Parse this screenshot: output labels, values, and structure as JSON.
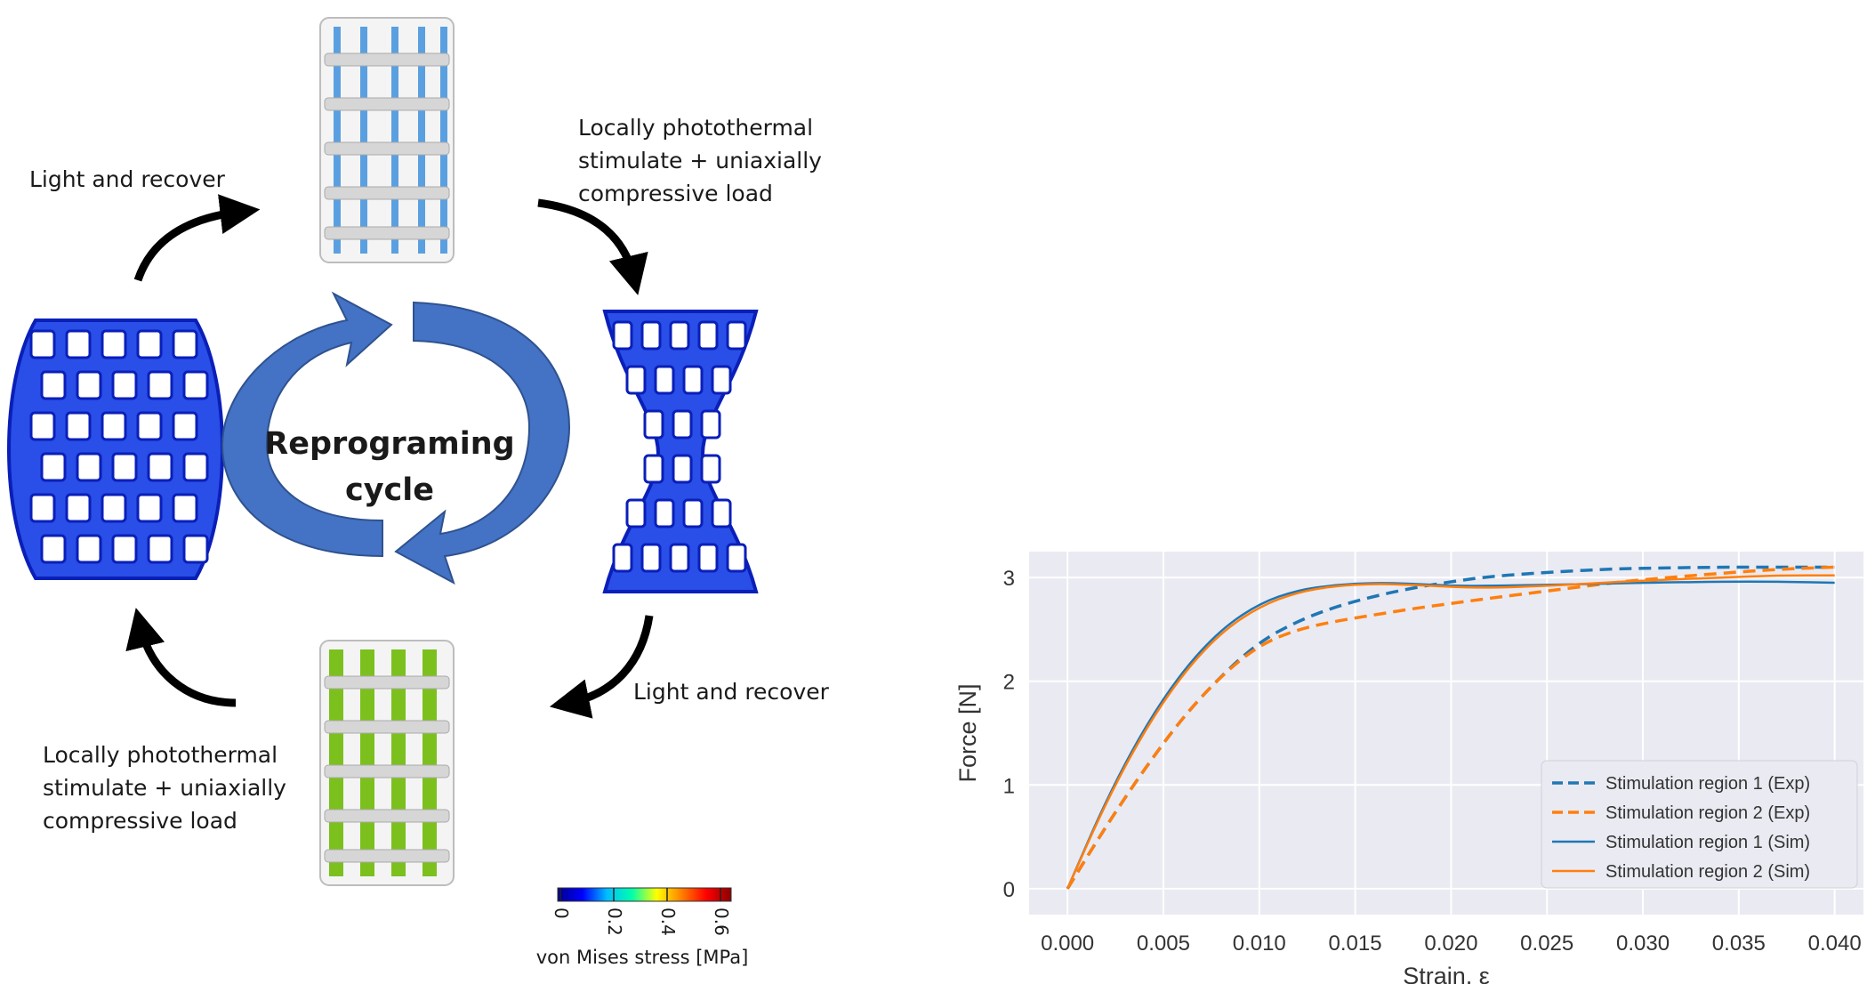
{
  "diagram": {
    "cycle_label_line1": "Reprograming",
    "cycle_label_line2": "cycle",
    "step_top_left": "Light and recover",
    "step_top_right": [
      "Locally photothermal",
      "stimulate + uniaxially",
      "compressive load"
    ],
    "step_bottom_right": "Light and recover",
    "step_bottom_left": [
      "Locally photothermal",
      "stimulate + uniaxially",
      "compressive load"
    ],
    "colorbar": {
      "title": "von Mises stress [MPa]",
      "ticks": [
        "0",
        "0.2",
        "0.4",
        "0.6"
      ],
      "colors": [
        "#00008b",
        "#0000ff",
        "#00bfff",
        "#00ffaa",
        "#ffff00",
        "#ff8000",
        "#ff0000",
        "#8b0000"
      ]
    },
    "colors": {
      "stress_blue": "#1f3fe0",
      "stimulated_green": "#7cc01e",
      "cycle_arrow": "#4472c4",
      "light_blue_stripe": "#5aa0e0"
    }
  },
  "chart_data": {
    "type": "line",
    "xlabel": "Strain, ε",
    "ylabel": "Force [N]",
    "xlim": [
      -0.002,
      0.0415
    ],
    "ylim": [
      -0.25,
      3.25
    ],
    "xticks": [
      0.0,
      0.005,
      0.01,
      0.015,
      0.02,
      0.025,
      0.03,
      0.035,
      0.04
    ],
    "xtick_labels": [
      "0.000",
      "0.005",
      "0.010",
      "0.015",
      "0.020",
      "0.025",
      "0.030",
      "0.035",
      "0.040"
    ],
    "yticks": [
      0,
      1,
      2,
      3
    ],
    "ytick_labels": [
      "0",
      "1",
      "2",
      "3"
    ],
    "grid": true,
    "legend_position": "lower-right",
    "series": [
      {
        "name": "Stimulation region 1 (Exp)",
        "color": "#1f77b4",
        "dash": "dashed",
        "x": [
          0.0,
          0.002,
          0.004,
          0.006,
          0.008,
          0.01,
          0.012,
          0.014,
          0.016,
          0.018,
          0.02,
          0.022,
          0.025,
          0.028,
          0.03,
          0.034,
          0.037,
          0.04
        ],
        "y": [
          0.0,
          0.6,
          1.15,
          1.65,
          2.05,
          2.38,
          2.58,
          2.72,
          2.82,
          2.9,
          2.96,
          3.01,
          3.05,
          3.08,
          3.09,
          3.1,
          3.1,
          3.1
        ]
      },
      {
        "name": "Stimulation region 2 (Exp)",
        "color": "#ff7f0e",
        "dash": "dashed",
        "x": [
          0.0,
          0.002,
          0.004,
          0.006,
          0.008,
          0.01,
          0.012,
          0.014,
          0.016,
          0.018,
          0.02,
          0.022,
          0.025,
          0.028,
          0.03,
          0.034,
          0.037,
          0.04
        ],
        "y": [
          0.0,
          0.6,
          1.15,
          1.65,
          2.05,
          2.35,
          2.5,
          2.58,
          2.64,
          2.7,
          2.75,
          2.8,
          2.87,
          2.94,
          2.98,
          3.04,
          3.08,
          3.1
        ]
      },
      {
        "name": "Stimulation region 1 (Sim)",
        "color": "#1f77b4",
        "dash": "solid",
        "x": [
          0.0,
          0.002,
          0.004,
          0.006,
          0.008,
          0.01,
          0.012,
          0.014,
          0.016,
          0.018,
          0.02,
          0.022,
          0.025,
          0.028,
          0.03,
          0.034,
          0.037,
          0.04
        ],
        "y": [
          0.0,
          0.85,
          1.55,
          2.1,
          2.5,
          2.75,
          2.88,
          2.93,
          2.95,
          2.94,
          2.92,
          2.92,
          2.93,
          2.94,
          2.95,
          2.96,
          2.96,
          2.95
        ]
      },
      {
        "name": "Stimulation region 2 (Sim)",
        "color": "#ff7f0e",
        "dash": "solid",
        "x": [
          0.0,
          0.002,
          0.004,
          0.006,
          0.008,
          0.01,
          0.012,
          0.014,
          0.016,
          0.018,
          0.02,
          0.022,
          0.025,
          0.028,
          0.03,
          0.034,
          0.037,
          0.04
        ],
        "y": [
          0.0,
          0.83,
          1.52,
          2.07,
          2.47,
          2.72,
          2.86,
          2.92,
          2.94,
          2.93,
          2.91,
          2.9,
          2.92,
          2.95,
          2.97,
          3.0,
          3.02,
          3.02
        ]
      }
    ]
  }
}
